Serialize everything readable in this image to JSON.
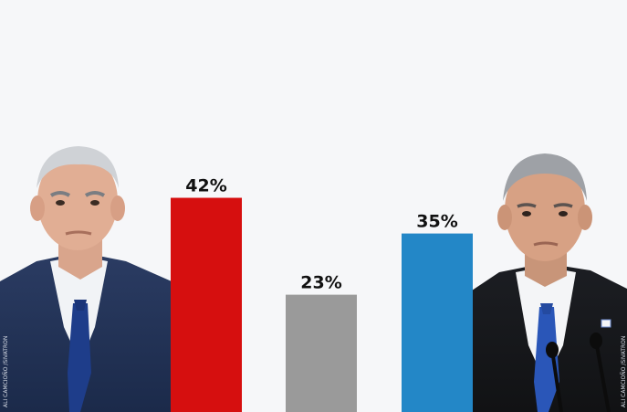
{
  "chart_data": {
    "type": "bar",
    "categories": [
      "",
      "",
      ""
    ],
    "values": [
      42,
      23,
      35
    ],
    "value_labels": [
      "42%",
      "23%",
      "35%"
    ],
    "ylim": [
      0,
      60
    ],
    "colors": [
      "#d60f0f",
      "#9a9a9a",
      "#2387c7"
    ],
    "grid": false,
    "legend": "none"
  },
  "photo_credits": {
    "left": "ALI CAMCIOÑO /SIVATRON",
    "right": "ALI CAMCIOÑO /SIVATRON"
  }
}
